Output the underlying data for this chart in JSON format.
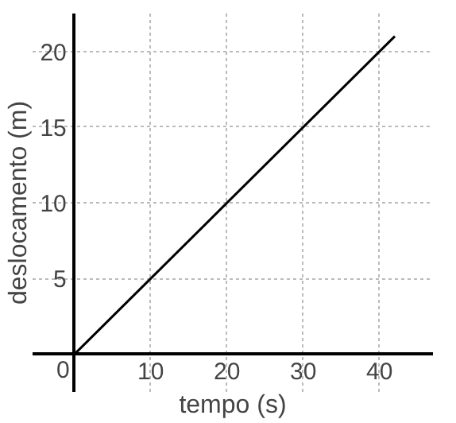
{
  "chart_data": {
    "type": "line",
    "xlabel": "tempo (s)",
    "ylabel": "deslocamento (m)",
    "x": [
      0,
      42
    ],
    "series": [
      {
        "color": "#000000",
        "values": [
          0,
          21
        ]
      }
    ],
    "xlim": [
      -5.5,
      47
    ],
    "ylim": [
      -2.5,
      22.5
    ],
    "xticks": [
      {
        "value": 0,
        "label": "0"
      },
      10,
      20,
      30,
      40
    ],
    "yticks": [
      {
        "value": 0,
        "label": null
      },
      5,
      10,
      15,
      20
    ],
    "grid": true,
    "marker": "none",
    "line_style": "solid"
  }
}
